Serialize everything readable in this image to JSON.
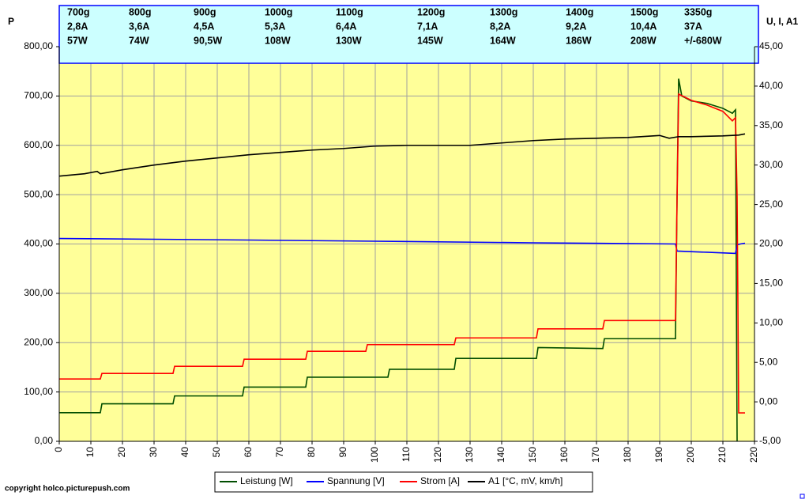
{
  "chart_data": {
    "type": "line",
    "y_label": "P",
    "y2_label": "U, I, A1",
    "credit": "copyright holco.picturepush.com",
    "annotations": [
      [
        "700g",
        "800g",
        "900g",
        "1000g",
        "1100g",
        "1200g",
        "1300g",
        "1400g",
        "1500g",
        "3350g"
      ],
      [
        "2,8A",
        "3,6A",
        "4,5A",
        "5,3A",
        "6,4A",
        "7,1A",
        "8,2A",
        "9,2A",
        "10,4A",
        "37A"
      ],
      [
        "57W",
        "74W",
        "90,5W",
        "108W",
        "130W",
        "145W",
        "164W",
        "186W",
        "208W",
        "+/-680W"
      ]
    ],
    "annotation_colors": [
      "#000000",
      "#ff0000",
      "#006400"
    ],
    "xlim": [
      0,
      220
    ],
    "xticks": [
      0,
      10,
      20,
      30,
      40,
      50,
      60,
      70,
      80,
      90,
      100,
      110,
      120,
      130,
      140,
      150,
      160,
      170,
      180,
      190,
      200,
      210,
      220
    ],
    "ylim": [
      0,
      800
    ],
    "yticks": [
      {
        "value": 0,
        "label": "0,00"
      },
      {
        "value": 100,
        "label": "100,00"
      },
      {
        "value": 200,
        "label": "200,00"
      },
      {
        "value": 300,
        "label": "300,00"
      },
      {
        "value": 400,
        "label": "400,00"
      },
      {
        "value": 500,
        "label": "500,00"
      },
      {
        "value": 600,
        "label": "600,00"
      },
      {
        "value": 700,
        "label": "700,00"
      },
      {
        "value": 800,
        "label": "800,00"
      }
    ],
    "y2lim": [
      -5,
      45
    ],
    "y2ticks": [
      {
        "value": -5,
        "label": "-5,00"
      },
      {
        "value": 0,
        "label": "0,00"
      },
      {
        "value": 5,
        "label": "5,00"
      },
      {
        "value": 10,
        "label": "10,00"
      },
      {
        "value": 15,
        "label": "15,00"
      },
      {
        "value": 20,
        "label": "20,00"
      },
      {
        "value": 25,
        "label": "25,00"
      },
      {
        "value": 30,
        "label": "30,00"
      },
      {
        "value": 35,
        "label": "35,00"
      },
      {
        "value": 40,
        "label": "40,00"
      },
      {
        "value": 45,
        "label": "45,00"
      }
    ],
    "grid": true,
    "legend": "bottom",
    "series": [
      {
        "name": "Leistung [W]",
        "color": "#004d00",
        "axis": "y",
        "x": [
          0,
          13,
          13.5,
          36,
          36.5,
          58,
          58.5,
          78,
          78.5,
          104,
          104.5,
          125,
          125.5,
          151,
          151.5,
          172,
          172.5,
          195,
          195.5,
          196,
          197,
          200,
          205,
          210,
          213,
          214,
          214.5
        ],
        "values": [
          58,
          58,
          76,
          76,
          92,
          92,
          110,
          110,
          130,
          130,
          146,
          146,
          168,
          168,
          190,
          188,
          208,
          208,
          500,
          735,
          700,
          690,
          685,
          675,
          665,
          672,
          0
        ]
      },
      {
        "name": "Spannung [V]",
        "color": "#0000ff",
        "axis": "y2",
        "x": [
          0,
          30,
          60,
          100,
          150,
          195,
          195.5,
          205,
          214,
          214.5,
          215.5,
          217
        ],
        "values": [
          20.7,
          20.6,
          20.5,
          20.35,
          20.15,
          20.0,
          19.1,
          18.95,
          18.8,
          19.9,
          20.0,
          20.1
        ]
      },
      {
        "name": "Strom [A]",
        "color": "#ff0000",
        "axis": "y2",
        "x": [
          0,
          13,
          13.5,
          36,
          36.5,
          58,
          58.5,
          78,
          78.5,
          97,
          97.5,
          125,
          125.5,
          151,
          151.5,
          172,
          172.5,
          195,
          195.5,
          196,
          200,
          205,
          210,
          213,
          214,
          214.5,
          215,
          217
        ],
        "values": [
          2.9,
          2.9,
          3.6,
          3.6,
          4.5,
          4.5,
          5.4,
          5.4,
          6.4,
          6.4,
          7.25,
          7.25,
          8.1,
          8.1,
          9.25,
          9.25,
          10.3,
          10.3,
          25.5,
          39,
          38.2,
          37.6,
          36.8,
          35.6,
          36,
          26,
          -1.4,
          -1.4
        ]
      },
      {
        "name": "A1 [°C, mV, km/h]",
        "color": "#000000",
        "axis": "y2",
        "x": [
          0,
          8,
          12,
          13,
          20,
          30,
          40,
          50,
          60,
          70,
          80,
          90,
          100,
          110,
          120,
          130,
          140,
          150,
          160,
          170,
          180,
          190,
          193,
          196,
          200,
          210,
          215,
          217
        ],
        "values": [
          28.6,
          28.9,
          29.2,
          28.9,
          29.4,
          30.0,
          30.5,
          30.9,
          31.3,
          31.6,
          31.9,
          32.1,
          32.4,
          32.5,
          32.5,
          32.5,
          32.8,
          33.1,
          33.3,
          33.4,
          33.5,
          33.75,
          33.4,
          33.6,
          33.6,
          33.7,
          33.8,
          33.95
        ]
      }
    ]
  }
}
